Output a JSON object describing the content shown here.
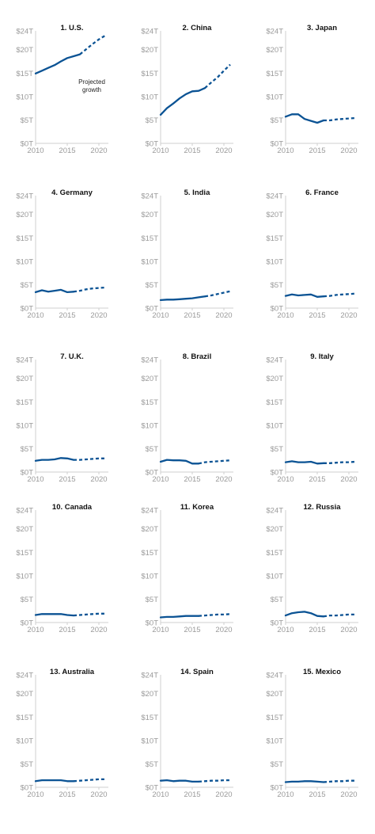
{
  "colors": {
    "line": "#0b5394",
    "axis": "#cfcfcf",
    "tick": "#9a9a9a"
  },
  "annotation": {
    "line1": "Projected",
    "line2": "growth"
  },
  "axes": {
    "y_ticks": [
      0,
      5,
      10,
      15,
      20,
      24
    ],
    "y_tick_labels": [
      "$0T",
      "$5T",
      "$10T",
      "$15T",
      "$20T",
      "$24T"
    ],
    "x_ticks": [
      2010,
      2015,
      2020
    ],
    "x_tick_labels": [
      "2010",
      "2015",
      "2020"
    ],
    "ylim": [
      0,
      24
    ],
    "xlim": [
      2010,
      2021
    ]
  },
  "chart_data": [
    {
      "type": "line",
      "title": "1. U.S.",
      "series": [
        {
          "x": [
            2010,
            2011,
            2012,
            2013,
            2014,
            2015,
            2016,
            2017
          ],
          "values": [
            14.9,
            15.5,
            16.1,
            16.7,
            17.5,
            18.2,
            18.6,
            19.0
          ],
          "style": "actual"
        },
        {
          "x": [
            2017,
            2018,
            2019,
            2020,
            2021
          ],
          "values": [
            19.0,
            20.1,
            21.2,
            22.2,
            23.0
          ],
          "style": "projected"
        }
      ]
    },
    {
      "type": "line",
      "title": "2. China",
      "series": [
        {
          "x": [
            2010,
            2011,
            2012,
            2013,
            2014,
            2015,
            2016,
            2017
          ],
          "values": [
            6.1,
            7.5,
            8.5,
            9.6,
            10.5,
            11.1,
            11.2,
            11.8
          ],
          "style": "actual"
        },
        {
          "x": [
            2017,
            2018,
            2019,
            2020,
            2021
          ],
          "values": [
            11.8,
            13.0,
            14.1,
            15.5,
            16.8
          ],
          "style": "projected"
        }
      ]
    },
    {
      "type": "line",
      "title": "3. Japan",
      "series": [
        {
          "x": [
            2010,
            2011,
            2012,
            2013,
            2014,
            2015,
            2016
          ],
          "values": [
            5.7,
            6.2,
            6.2,
            5.2,
            4.8,
            4.4,
            4.9
          ],
          "style": "actual"
        },
        {
          "x": [
            2016,
            2017,
            2018,
            2019,
            2020,
            2021
          ],
          "values": [
            4.9,
            4.9,
            5.1,
            5.2,
            5.3,
            5.4
          ],
          "style": "projected"
        }
      ]
    },
    {
      "type": "line",
      "title": "4. Germany",
      "series": [
        {
          "x": [
            2010,
            2011,
            2012,
            2013,
            2014,
            2015,
            2016
          ],
          "values": [
            3.4,
            3.8,
            3.5,
            3.7,
            3.9,
            3.4,
            3.5
          ],
          "style": "actual"
        },
        {
          "x": [
            2016,
            2017,
            2018,
            2019,
            2020,
            2021
          ],
          "values": [
            3.5,
            3.7,
            4.0,
            4.2,
            4.3,
            4.4
          ],
          "style": "projected"
        }
      ]
    },
    {
      "type": "line",
      "title": "5. India",
      "series": [
        {
          "x": [
            2010,
            2011,
            2012,
            2013,
            2014,
            2015,
            2016,
            2017
          ],
          "values": [
            1.7,
            1.8,
            1.8,
            1.9,
            2.0,
            2.1,
            2.3,
            2.5
          ],
          "style": "actual"
        },
        {
          "x": [
            2017,
            2018,
            2019,
            2020,
            2021
          ],
          "values": [
            2.5,
            2.7,
            3.0,
            3.3,
            3.6
          ],
          "style": "projected"
        }
      ]
    },
    {
      "type": "line",
      "title": "6. France",
      "series": [
        {
          "x": [
            2010,
            2011,
            2012,
            2013,
            2014,
            2015,
            2016
          ],
          "values": [
            2.6,
            2.9,
            2.7,
            2.8,
            2.9,
            2.4,
            2.5
          ],
          "style": "actual"
        },
        {
          "x": [
            2016,
            2017,
            2018,
            2019,
            2020,
            2021
          ],
          "values": [
            2.5,
            2.6,
            2.8,
            2.9,
            3.0,
            3.1
          ],
          "style": "projected"
        }
      ]
    },
    {
      "type": "line",
      "title": "7. U.K.",
      "series": [
        {
          "x": [
            2010,
            2011,
            2012,
            2013,
            2014,
            2015,
            2016
          ],
          "values": [
            2.4,
            2.6,
            2.6,
            2.7,
            3.0,
            2.9,
            2.6
          ],
          "style": "actual"
        },
        {
          "x": [
            2016,
            2017,
            2018,
            2019,
            2020,
            2021
          ],
          "values": [
            2.6,
            2.6,
            2.7,
            2.8,
            2.9,
            2.9
          ],
          "style": "projected"
        }
      ]
    },
    {
      "type": "line",
      "title": "8. Brazil",
      "series": [
        {
          "x": [
            2010,
            2011,
            2012,
            2013,
            2014,
            2015,
            2016
          ],
          "values": [
            2.2,
            2.6,
            2.5,
            2.5,
            2.4,
            1.8,
            1.8
          ],
          "style": "actual"
        },
        {
          "x": [
            2016,
            2017,
            2018,
            2019,
            2020,
            2021
          ],
          "values": [
            1.8,
            2.1,
            2.2,
            2.3,
            2.4,
            2.5
          ],
          "style": "projected"
        }
      ]
    },
    {
      "type": "line",
      "title": "9. Italy",
      "series": [
        {
          "x": [
            2010,
            2011,
            2012,
            2013,
            2014,
            2015,
            2016
          ],
          "values": [
            2.1,
            2.3,
            2.1,
            2.1,
            2.2,
            1.8,
            1.9
          ],
          "style": "actual"
        },
        {
          "x": [
            2016,
            2017,
            2018,
            2019,
            2020,
            2021
          ],
          "values": [
            1.9,
            1.9,
            2.0,
            2.1,
            2.1,
            2.2
          ],
          "style": "projected"
        }
      ]
    },
    {
      "type": "line",
      "title": "10. Canada",
      "series": [
        {
          "x": [
            2010,
            2011,
            2012,
            2013,
            2014,
            2015,
            2016
          ],
          "values": [
            1.6,
            1.8,
            1.8,
            1.8,
            1.8,
            1.6,
            1.5
          ],
          "style": "actual"
        },
        {
          "x": [
            2016,
            2017,
            2018,
            2019,
            2020,
            2021
          ],
          "values": [
            1.5,
            1.6,
            1.7,
            1.8,
            1.9,
            1.9
          ],
          "style": "projected"
        }
      ]
    },
    {
      "type": "line",
      "title": "11. Korea",
      "series": [
        {
          "x": [
            2010,
            2011,
            2012,
            2013,
            2014,
            2015,
            2016
          ],
          "values": [
            1.1,
            1.2,
            1.2,
            1.3,
            1.4,
            1.4,
            1.4
          ],
          "style": "actual"
        },
        {
          "x": [
            2016,
            2017,
            2018,
            2019,
            2020,
            2021
          ],
          "values": [
            1.4,
            1.5,
            1.6,
            1.7,
            1.7,
            1.8
          ],
          "style": "projected"
        }
      ]
    },
    {
      "type": "line",
      "title": "12. Russia",
      "series": [
        {
          "x": [
            2010,
            2011,
            2012,
            2013,
            2014,
            2015,
            2016
          ],
          "values": [
            1.5,
            2.0,
            2.2,
            2.3,
            2.0,
            1.4,
            1.3
          ],
          "style": "actual"
        },
        {
          "x": [
            2016,
            2017,
            2018,
            2019,
            2020,
            2021
          ],
          "values": [
            1.3,
            1.5,
            1.5,
            1.6,
            1.7,
            1.7
          ],
          "style": "projected"
        }
      ]
    },
    {
      "type": "line",
      "title": "13. Australia",
      "series": [
        {
          "x": [
            2010,
            2011,
            2012,
            2013,
            2014,
            2015,
            2016
          ],
          "values": [
            1.3,
            1.5,
            1.5,
            1.5,
            1.5,
            1.3,
            1.3
          ],
          "style": "actual"
        },
        {
          "x": [
            2016,
            2017,
            2018,
            2019,
            2020,
            2021
          ],
          "values": [
            1.3,
            1.4,
            1.5,
            1.6,
            1.7,
            1.7
          ],
          "style": "projected"
        }
      ]
    },
    {
      "type": "line",
      "title": "14. Spain",
      "series": [
        {
          "x": [
            2010,
            2011,
            2012,
            2013,
            2014,
            2015,
            2016
          ],
          "values": [
            1.4,
            1.5,
            1.3,
            1.4,
            1.4,
            1.2,
            1.2
          ],
          "style": "actual"
        },
        {
          "x": [
            2016,
            2017,
            2018,
            2019,
            2020,
            2021
          ],
          "values": [
            1.2,
            1.3,
            1.4,
            1.4,
            1.5,
            1.5
          ],
          "style": "projected"
        }
      ]
    },
    {
      "type": "line",
      "title": "15. Mexico",
      "series": [
        {
          "x": [
            2010,
            2011,
            2012,
            2013,
            2014,
            2015,
            2016
          ],
          "values": [
            1.1,
            1.2,
            1.2,
            1.3,
            1.3,
            1.2,
            1.1
          ],
          "style": "actual"
        },
        {
          "x": [
            2016,
            2017,
            2018,
            2019,
            2020,
            2021
          ],
          "values": [
            1.1,
            1.2,
            1.3,
            1.3,
            1.4,
            1.4
          ],
          "style": "projected"
        }
      ]
    }
  ]
}
